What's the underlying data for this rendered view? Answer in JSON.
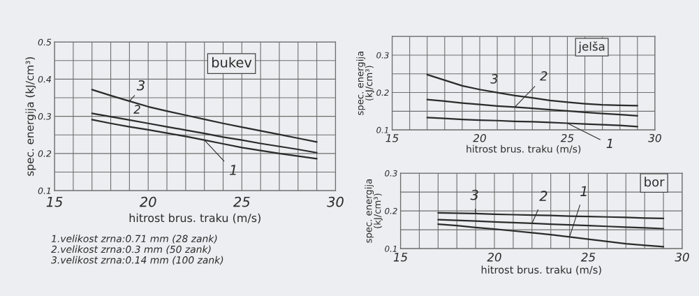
{
  "chart_data": [
    {
      "type": "line",
      "title": "bukev",
      "xlabel": "hitrost brus. traku (m/s)",
      "ylabel": "spec. energija (kJ/cm³)",
      "x": [
        17,
        18,
        19,
        20,
        21,
        22,
        23,
        24,
        25,
        26,
        27,
        28,
        29
      ],
      "series": [
        {
          "name": "1",
          "color": "#2b2b2b",
          "values": [
            0.291,
            0.281,
            0.272,
            0.264,
            0.255,
            0.246,
            0.236,
            0.226,
            0.216,
            0.208,
            0.2,
            0.193,
            0.186
          ]
        },
        {
          "name": "2",
          "color": "#2b2b2b",
          "values": [
            0.308,
            0.299,
            0.29,
            0.281,
            0.272,
            0.263,
            0.254,
            0.244,
            0.236,
            0.227,
            0.219,
            0.211,
            0.202
          ]
        },
        {
          "name": "3",
          "color": "#2b2b2b",
          "values": [
            0.372,
            0.356,
            0.341,
            0.326,
            0.314,
            0.303,
            0.292,
            0.281,
            0.271,
            0.261,
            0.251,
            0.241,
            0.231
          ]
        }
      ],
      "xlim": [
        15,
        30
      ],
      "ylim": [
        0.1,
        0.5
      ],
      "xticks": [
        15,
        {
          "value": 16,
          "label": null
        },
        {
          "value": 17,
          "label": null
        },
        {
          "value": 18,
          "label": null
        },
        {
          "value": 19,
          "label": null
        },
        20,
        {
          "value": 21,
          "label": null
        },
        {
          "value": 22,
          "label": null
        },
        {
          "value": 23,
          "label": null
        },
        {
          "value": 24,
          "label": null
        },
        25,
        {
          "value": 26,
          "label": null
        },
        {
          "value": 27,
          "label": null
        },
        {
          "value": 28,
          "label": null
        },
        {
          "value": 29,
          "label": null
        },
        30
      ],
      "yticks": [
        0.1,
        {
          "value": 0.15,
          "label": null
        },
        0.2,
        {
          "value": 0.25,
          "label": null
        },
        0.3,
        {
          "value": 0.35,
          "label": null
        },
        0.4,
        {
          "value": 0.45,
          "label": null
        },
        0.5
      ],
      "grid": true,
      "annotations": [
        "1.velikost zrna:0.71 mm (28 zank)",
        "2.velikost zrna:0.3 mm (50 zank)",
        "3.velikost zrna:0.14 mm (100 zank)"
      ]
    },
    {
      "type": "line",
      "title": "jelša",
      "xlabel": "hitrost brus. traku (m/s)",
      "ylabel": "spec. energija\n(kJ/cm³)",
      "x": [
        17,
        18,
        19,
        20,
        21,
        22,
        23,
        24,
        25,
        26,
        27,
        28,
        29
      ],
      "series": [
        {
          "name": "1",
          "color": "#2b2b2b",
          "values": [
            0.133,
            0.131,
            0.128,
            0.126,
            0.125,
            0.123,
            0.122,
            0.12,
            0.118,
            0.116,
            0.114,
            0.112,
            0.109
          ]
        },
        {
          "name": "2",
          "color": "#2b2b2b",
          "values": [
            0.181,
            0.177,
            0.172,
            0.168,
            0.164,
            0.161,
            0.158,
            0.154,
            0.151,
            0.147,
            0.144,
            0.141,
            0.138
          ]
        },
        {
          "name": "3",
          "color": "#2b2b2b",
          "values": [
            0.248,
            0.233,
            0.218,
            0.208,
            0.2,
            0.192,
            0.186,
            0.179,
            0.174,
            0.17,
            0.167,
            0.166,
            0.165
          ]
        }
      ],
      "xlim": [
        15,
        30
      ],
      "ylim": [
        0.1,
        0.35
      ],
      "xticks": [
        15,
        {
          "value": 16,
          "label": null
        },
        {
          "value": 17,
          "label": null
        },
        {
          "value": 18,
          "label": null
        },
        {
          "value": 19,
          "label": null
        },
        20,
        {
          "value": 21,
          "label": null
        },
        {
          "value": 22,
          "label": null
        },
        {
          "value": 23,
          "label": null
        },
        {
          "value": 24,
          "label": null
        },
        25,
        {
          "value": 26,
          "label": null
        },
        {
          "value": 27,
          "label": null
        },
        {
          "value": 28,
          "label": null
        },
        {
          "value": 29,
          "label": null
        },
        30
      ],
      "yticks": [
        0.1,
        {
          "value": 0.15,
          "label": null
        },
        0.2,
        {
          "value": 0.25,
          "label": null
        },
        0.3,
        {
          "value": 0.35,
          "label": null
        }
      ],
      "grid": true
    },
    {
      "type": "line",
      "title": "bor",
      "xlabel": "hitrost brus. traku (m/s)",
      "ylabel": "spec. energija\n(kJ/cm³)",
      "x": [
        17,
        18,
        19,
        20,
        21,
        22,
        23,
        24,
        25,
        26,
        27,
        28,
        29
      ],
      "series": [
        {
          "name": "1",
          "color": "#2b2b2b",
          "values": [
            0.165,
            0.161,
            0.156,
            0.152,
            0.147,
            0.142,
            0.137,
            0.131,
            0.125,
            0.119,
            0.113,
            0.109,
            0.105
          ]
        },
        {
          "name": "2",
          "color": "#2b2b2b",
          "values": [
            0.177,
            0.175,
            0.173,
            0.171,
            0.169,
            0.167,
            0.165,
            0.163,
            0.161,
            0.159,
            0.157,
            0.155,
            0.153
          ]
        },
        {
          "name": "3",
          "color": "#2b2b2b",
          "values": [
            0.195,
            0.194,
            0.193,
            0.191,
            0.19,
            0.189,
            0.188,
            0.186,
            0.185,
            0.184,
            0.183,
            0.181,
            0.18
          ]
        }
      ],
      "xlim": [
        15,
        30
      ],
      "ylim": [
        0.1,
        0.3
      ],
      "xticks": [
        15,
        {
          "value": 16,
          "label": null
        },
        {
          "value": 17,
          "label": null
        },
        {
          "value": 18,
          "label": null
        },
        {
          "value": 19,
          "label": null
        },
        20,
        {
          "value": 21,
          "label": null
        },
        {
          "value": 22,
          "label": null
        },
        {
          "value": 23,
          "label": null
        },
        {
          "value": 24,
          "label": null
        },
        25,
        {
          "value": 26,
          "label": null
        },
        {
          "value": 27,
          "label": null
        },
        {
          "value": 28,
          "label": null
        },
        {
          "value": 29,
          "label": null
        },
        30
      ],
      "yticks": [
        0.1,
        {
          "value": 0.15,
          "label": null
        },
        0.2,
        {
          "value": 0.25,
          "label": null
        },
        0.3
      ],
      "grid": true
    }
  ]
}
